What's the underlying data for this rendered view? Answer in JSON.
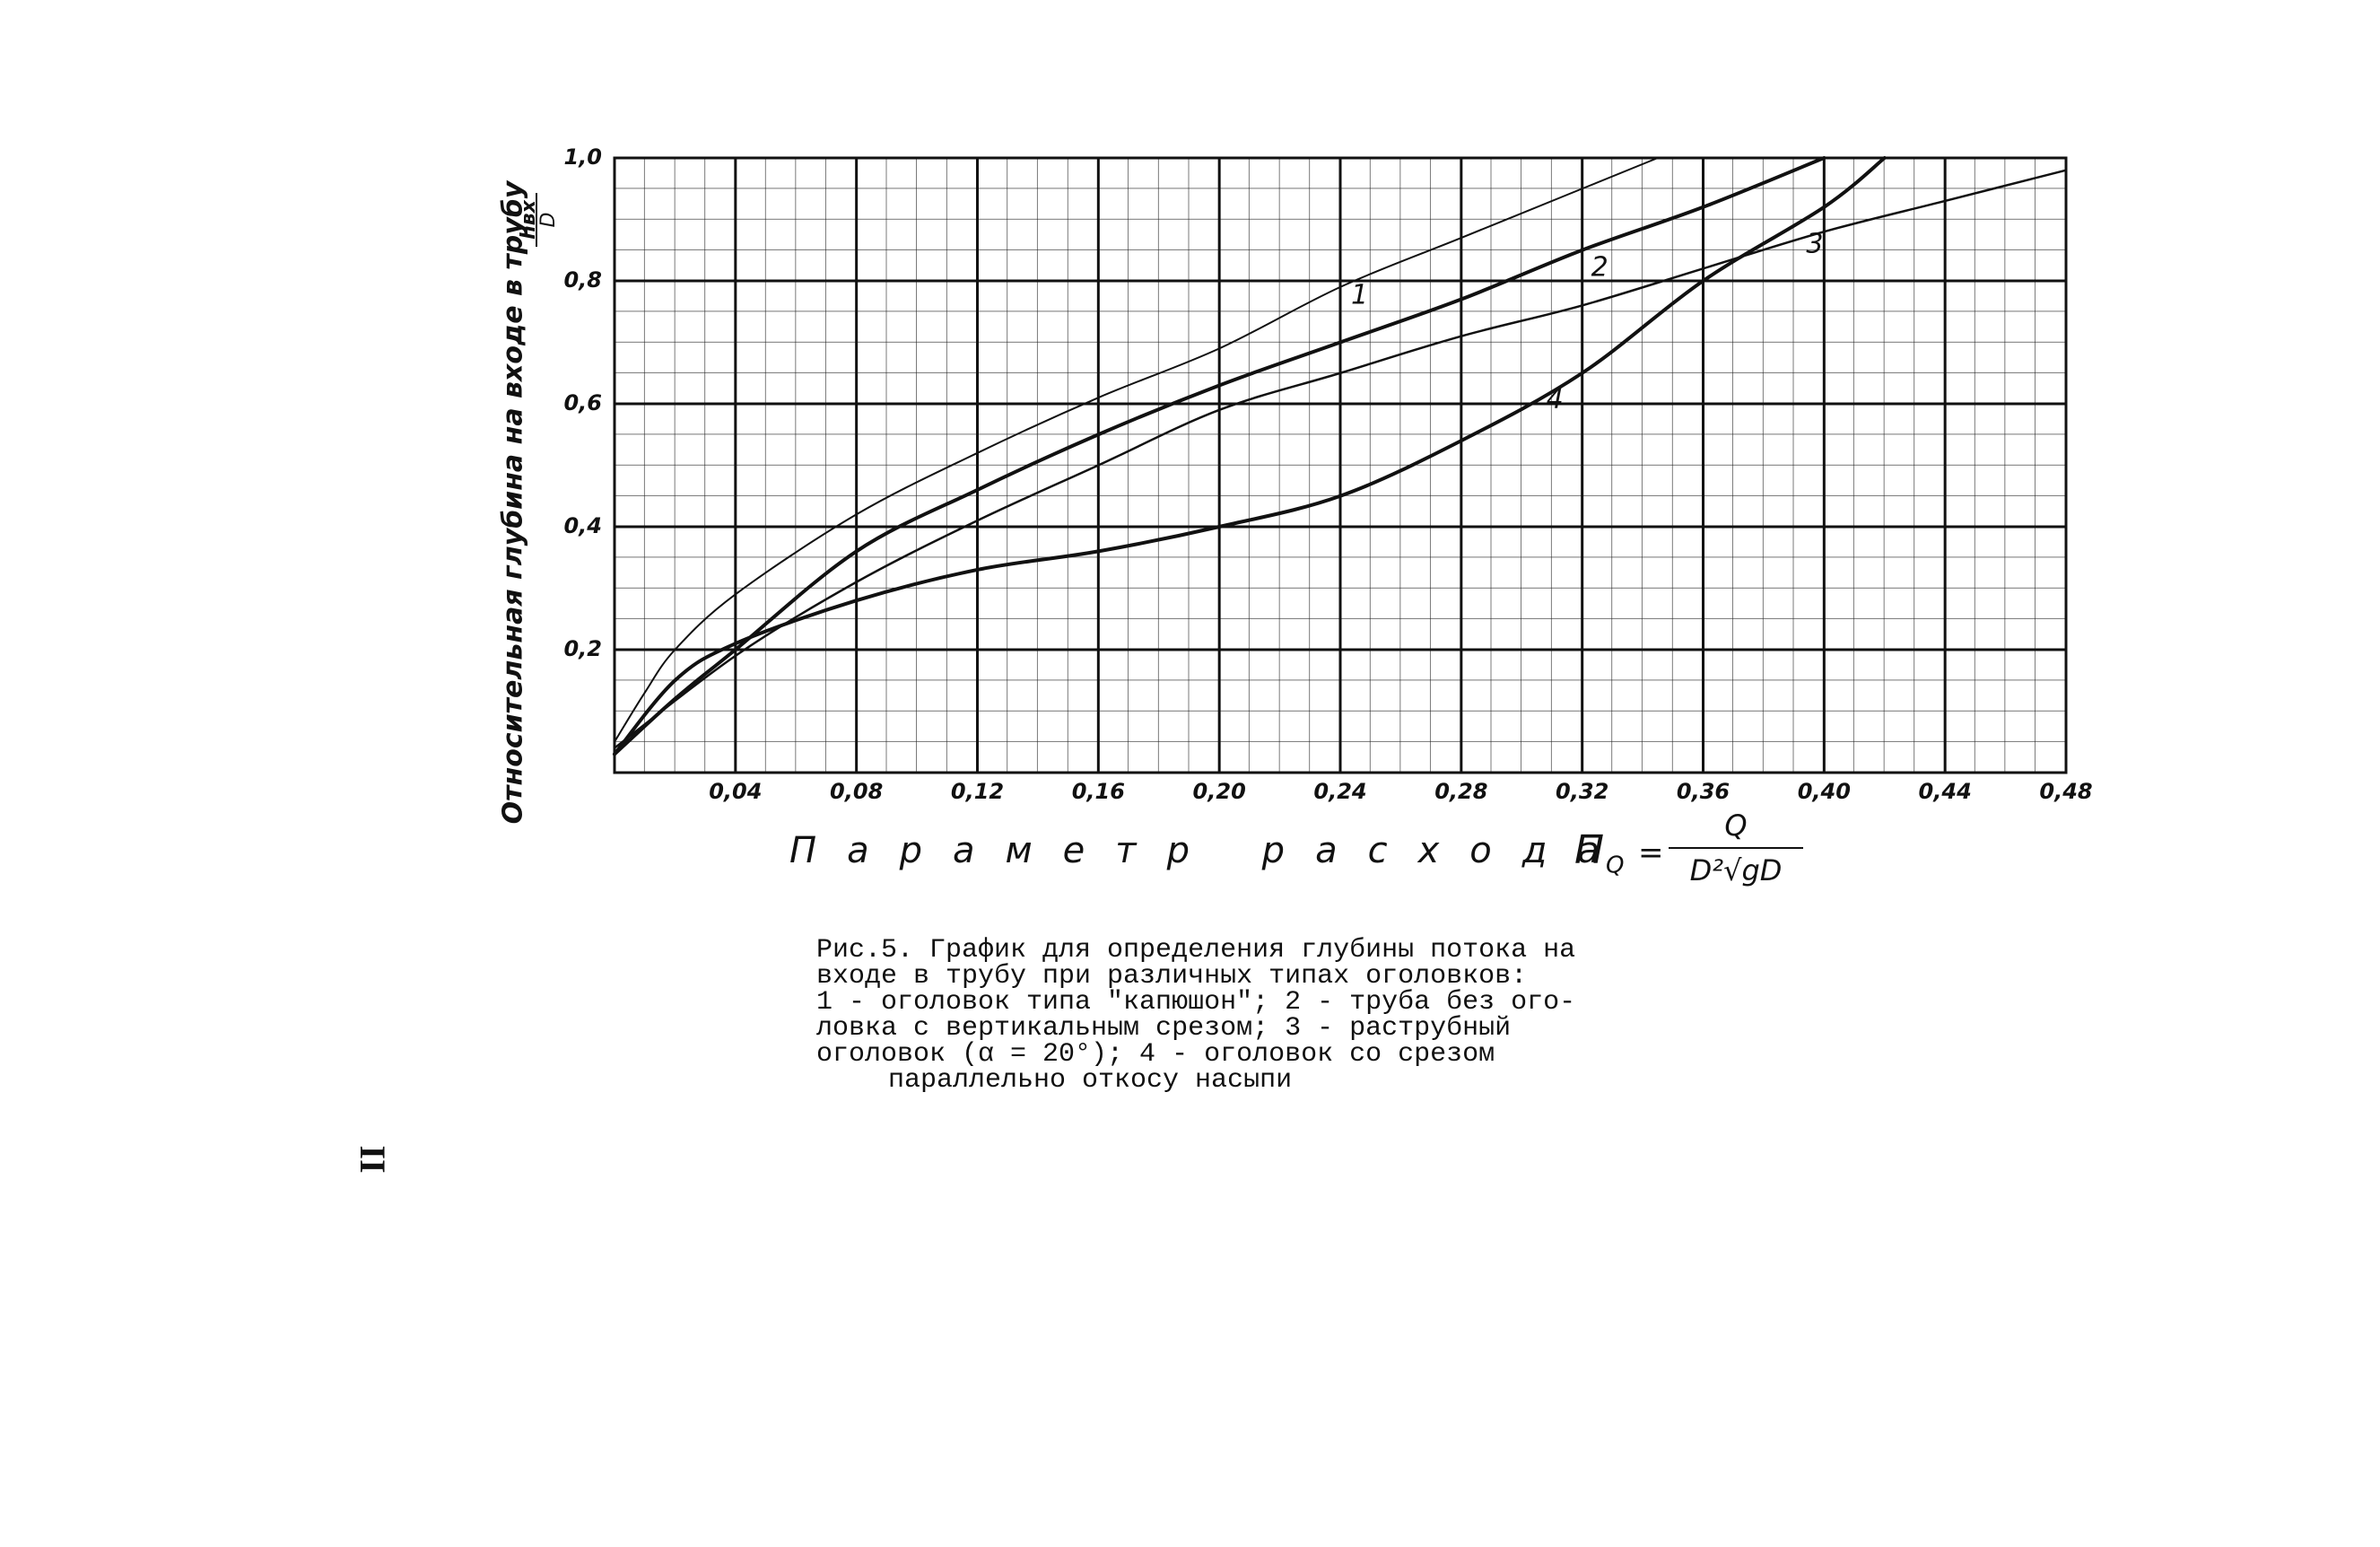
{
  "chart_data": {
    "type": "line",
    "y_axis_label": "Относительная глубина на входе в трубу",
    "y_axis_fraction": {
      "numerator": "hвх",
      "denominator": "D"
    },
    "x_axis_label": "Параметр расхода",
    "formula": {
      "symbol": "П",
      "subscript": "Q",
      "sign": "=",
      "numerator": "Q",
      "denominator": "D²√gD"
    },
    "xlim": [
      0,
      0.48
    ],
    "xticks": [
      {
        "value": 0.04,
        "label": "0,04"
      },
      {
        "value": 0.08,
        "label": "0,08"
      },
      {
        "value": 0.12,
        "label": "0,12"
      },
      {
        "value": 0.16,
        "label": "0,16"
      },
      {
        "value": 0.2,
        "label": "0,20"
      },
      {
        "value": 0.24,
        "label": "0,24"
      },
      {
        "value": 0.28,
        "label": "0,28"
      },
      {
        "value": 0.32,
        "label": "0,32"
      },
      {
        "value": 0.36,
        "label": "0,36"
      },
      {
        "value": 0.4,
        "label": "0,40"
      },
      {
        "value": 0.44,
        "label": "0,44"
      },
      {
        "value": 0.48,
        "label": "0,48"
      }
    ],
    "ylim": [
      0,
      1.0
    ],
    "yticks": [
      {
        "value": 0.2,
        "label": "0,2"
      },
      {
        "value": 0.4,
        "label": "0,4"
      },
      {
        "value": 0.6,
        "label": "0,6"
      },
      {
        "value": 0.8,
        "label": "0,8"
      },
      {
        "value": 1.0,
        "label": "1,0"
      }
    ],
    "grid": true,
    "series": [
      {
        "name": "1",
        "color": "#111111",
        "width": 2,
        "x": [
          0,
          0.01,
          0.02,
          0.04,
          0.08,
          0.12,
          0.16,
          0.2,
          0.24,
          0.28,
          0.32,
          0.345
        ],
        "values": [
          0.05,
          0.13,
          0.2,
          0.29,
          0.42,
          0.52,
          0.61,
          0.69,
          0.79,
          0.87,
          0.95,
          1.0
        ]
      },
      {
        "name": "2",
        "color": "#111111",
        "width": 4,
        "x": [
          0,
          0.02,
          0.04,
          0.08,
          0.12,
          0.16,
          0.2,
          0.24,
          0.28,
          0.32,
          0.36,
          0.4
        ],
        "values": [
          0.03,
          0.12,
          0.2,
          0.36,
          0.46,
          0.55,
          0.63,
          0.7,
          0.77,
          0.85,
          0.92,
          1.0
        ]
      },
      {
        "name": "3",
        "color": "#111111",
        "width": 2.5,
        "x": [
          0,
          0.04,
          0.08,
          0.12,
          0.16,
          0.2,
          0.24,
          0.28,
          0.32,
          0.36,
          0.4,
          0.44,
          0.48
        ],
        "values": [
          0.04,
          0.19,
          0.31,
          0.41,
          0.5,
          0.59,
          0.65,
          0.71,
          0.76,
          0.82,
          0.88,
          0.93,
          0.98
        ]
      },
      {
        "name": "4",
        "color": "#111111",
        "width": 4,
        "x": [
          0,
          0.02,
          0.04,
          0.08,
          0.12,
          0.16,
          0.2,
          0.24,
          0.28,
          0.32,
          0.36,
          0.4,
          0.42
        ],
        "values": [
          0.03,
          0.15,
          0.21,
          0.28,
          0.33,
          0.36,
          0.4,
          0.45,
          0.54,
          0.65,
          0.8,
          0.92,
          1.0
        ]
      }
    ],
    "caption": [
      "Рис.5. График для определения глубины потока на",
      "входе в трубу при различных типах оголовков:",
      "1 - оголовок типа \"капюшон\"; 2 - труба без ого-",
      "ловка с вертикальным срезом; 3 - раструбный",
      "оголовок (α = 20°); 4 - оголовок со срезом",
      "параллельно откосу насыпи"
    ],
    "page_number": "II"
  }
}
